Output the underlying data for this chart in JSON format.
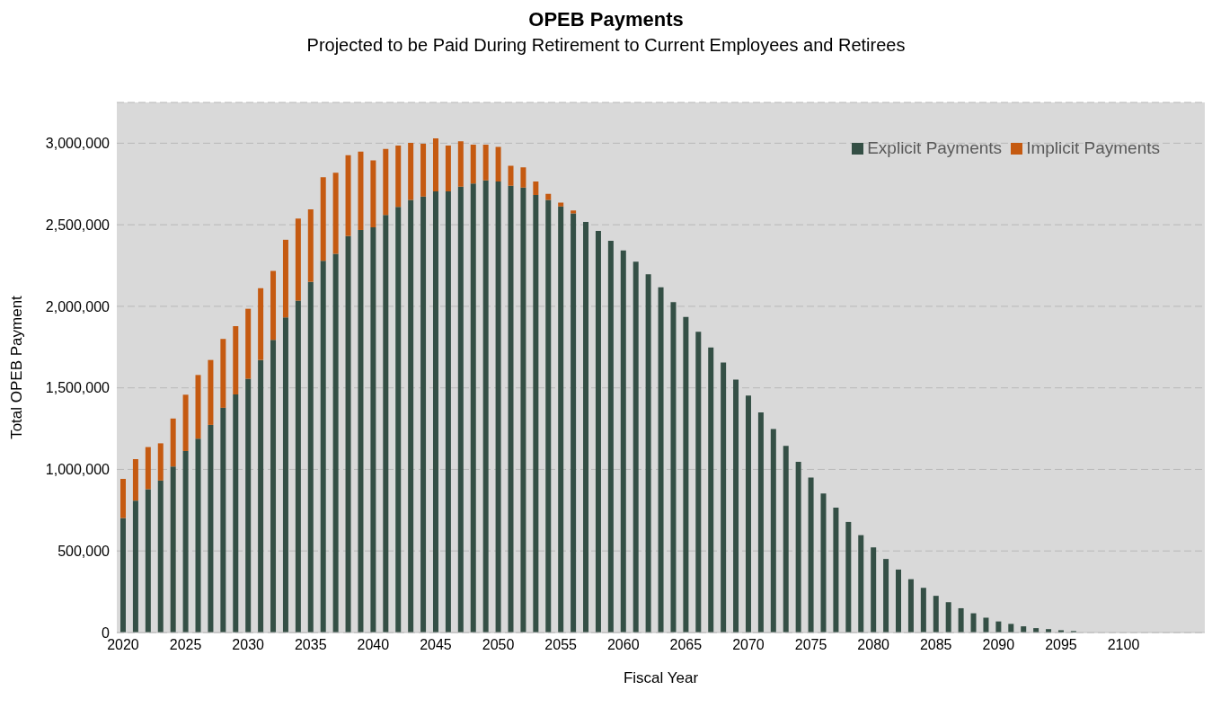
{
  "chart_data": {
    "type": "bar",
    "title": "OPEB Payments",
    "subtitle": "Projected to be Paid During Retirement to Current Employees and Retirees",
    "xlabel": "Fiscal Year",
    "ylabel": "Total OPEB Payment",
    "stacked": true,
    "grid": "y",
    "legend": "top right",
    "categories": [
      "2020",
      null,
      null,
      null,
      null,
      "2025",
      null,
      null,
      null,
      null,
      "2030",
      null,
      null,
      null,
      null,
      "2035",
      null,
      null,
      null,
      null,
      "2040",
      null,
      null,
      null,
      null,
      "2045",
      null,
      null,
      null,
      null,
      "2050",
      null,
      null,
      null,
      null,
      "2055",
      null,
      null,
      null,
      null,
      "2060",
      null,
      null,
      null,
      null,
      "2065",
      null,
      null,
      null,
      null,
      "2070",
      null,
      null,
      null,
      null,
      "2075",
      null,
      null,
      null,
      null,
      "2080",
      null,
      null,
      null,
      null,
      "2085",
      null,
      null,
      null,
      null,
      "2090",
      null,
      null,
      null,
      null,
      "2095",
      null,
      null,
      null,
      null,
      "2100",
      null,
      null,
      null,
      null,
      null,
      null
    ],
    "ylim": [
      0,
      3250000
    ],
    "yticks": [
      {
        "value": 0,
        "label": "0"
      },
      {
        "value": 500000,
        "label": "500,000"
      },
      {
        "value": 1000000,
        "label": "1,000,000"
      },
      {
        "value": 1500000,
        "label": "1,500,000"
      },
      {
        "value": 2000000,
        "label": "2,000,000"
      },
      {
        "value": 2500000,
        "label": "2,500,000"
      },
      {
        "value": 3000000,
        "label": "3,000,000"
      }
    ],
    "series": [
      {
        "name": "Explicit Payments",
        "color": "#344f45",
        "values": [
          702000,
          809000,
          879000,
          932000,
          1018000,
          1113000,
          1189000,
          1273000,
          1378000,
          1460000,
          1556000,
          1671000,
          1794000,
          1932000,
          2035000,
          2150000,
          2279000,
          2322000,
          2431000,
          2468000,
          2484000,
          2560000,
          2609000,
          2652000,
          2673000,
          2704000,
          2704000,
          2733000,
          2753000,
          2772000,
          2765000,
          2739000,
          2728000,
          2683000,
          2652000,
          2613000,
          2570000,
          2517000,
          2462000,
          2402000,
          2342000,
          2273000,
          2197000,
          2117000,
          2026000,
          1935000,
          1844000,
          1747000,
          1655000,
          1551000,
          1453000,
          1350000,
          1248000,
          1145000,
          1047000,
          950000,
          852000,
          765000,
          678000,
          597000,
          522000,
          451000,
          386000,
          327000,
          274000,
          225000,
          186000,
          149000,
          118000,
          91000,
          68000,
          53000,
          38000,
          27000,
          21000,
          14000,
          9000,
          0,
          0,
          0,
          0,
          0,
          0,
          0,
          0,
          0,
          0
        ]
      },
      {
        "name": "Implicit Payments",
        "color": "#c55a11",
        "values": [
          240000,
          254000,
          258000,
          228000,
          294000,
          345000,
          390000,
          398000,
          422000,
          418000,
          429000,
          440000,
          423000,
          476000,
          503000,
          445000,
          513000,
          497000,
          495000,
          480000,
          411000,
          405000,
          376000,
          350000,
          324000,
          326000,
          281000,
          279000,
          238000,
          219000,
          212000,
          123000,
          124000,
          82000,
          37000,
          23000,
          17000,
          null,
          null,
          null,
          null,
          null,
          null,
          null,
          null,
          null,
          null,
          null,
          null,
          null,
          null,
          null,
          null,
          null,
          null,
          null,
          null,
          null,
          null,
          null,
          null,
          null,
          null,
          null,
          null,
          null,
          null,
          null,
          null,
          null,
          null,
          null,
          null,
          null,
          null,
          null,
          null,
          null,
          null,
          null,
          null,
          null,
          null,
          null,
          null,
          null,
          null
        ]
      }
    ]
  }
}
